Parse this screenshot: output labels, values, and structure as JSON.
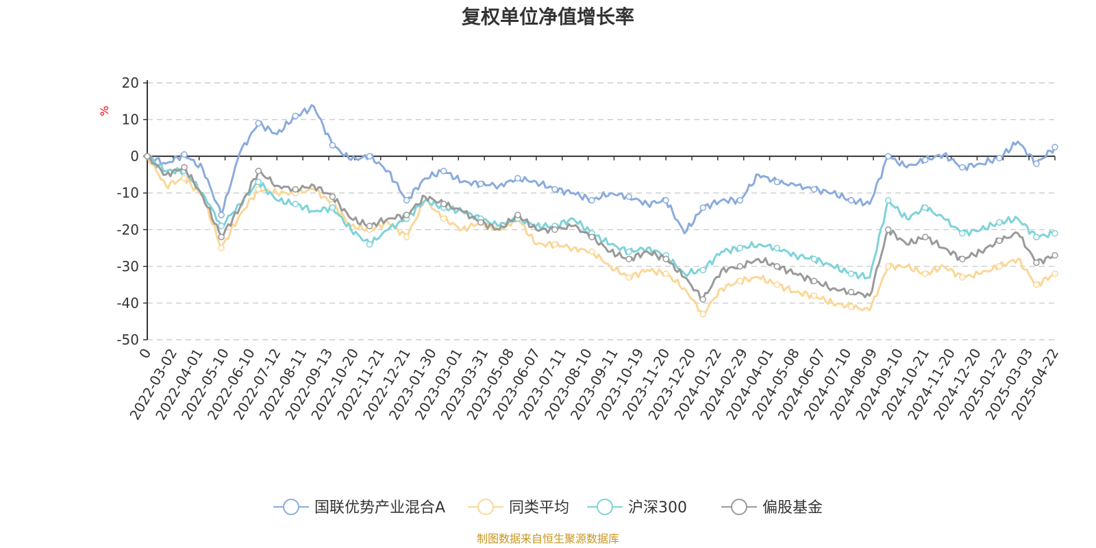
{
  "chart_data": {
    "type": "line",
    "title": "复权单位净值增长率",
    "ylabel": "%",
    "ylim": [
      -50,
      20
    ],
    "yticks": [
      20,
      10,
      0,
      -10,
      -20,
      -30,
      -40,
      -50
    ],
    "grid": true,
    "legend_position": "bottom",
    "source": "制图数据来自恒生聚源数据库",
    "x_tick_labels": [
      "0",
      "2022-03-02",
      "2022-04-01",
      "2022-05-10",
      "2022-06-10",
      "2022-07-12",
      "2022-08-11",
      "2022-09-13",
      "2022-10-20",
      "2022-11-21",
      "2022-12-21",
      "2023-01-30",
      "2023-03-01",
      "2023-03-31",
      "2023-05-08",
      "2023-06-07",
      "2023-07-11",
      "2023-08-10",
      "2023-09-11",
      "2023-10-19",
      "2023-11-20",
      "2023-12-20",
      "2024-01-22",
      "2024-02-29",
      "2024-04-01",
      "2024-05-08",
      "2024-06-07",
      "2024-07-10",
      "2024-08-09",
      "2024-09-10",
      "2024-10-21",
      "2024-11-20",
      "2024-12-20",
      "2025-01-22",
      "2025-03-03",
      "2025-04-22"
    ],
    "series": [
      {
        "name": "国联优势产业混合A",
        "color": "#8aabdc",
        "values": [
          0,
          -2,
          0.5,
          -3.5,
          -16,
          1,
          9,
          6,
          11,
          13.5,
          3,
          -1,
          0,
          -4,
          -12,
          -6,
          -4,
          -7,
          -7.5,
          -8,
          -6,
          -7,
          -9,
          -10,
          -12,
          -10,
          -11,
          -13,
          -12,
          -21,
          -14,
          -12,
          -12,
          -5,
          -7,
          -8,
          -9,
          -10,
          -12,
          -13,
          0,
          -3,
          -1,
          0.5,
          -3,
          -2,
          -0.5,
          4,
          -2,
          2.5
        ]
      },
      {
        "name": "同类平均",
        "color": "#fad797",
        "values": [
          0,
          -8,
          -6,
          -11,
          -25,
          -16,
          -9,
          -10,
          -10,
          -9,
          -13,
          -19,
          -20,
          -18,
          -22,
          -12,
          -17,
          -20,
          -18,
          -20,
          -17,
          -24,
          -24,
          -25,
          -26,
          -30,
          -33,
          -31,
          -32,
          -36,
          -43,
          -36,
          -34,
          -33,
          -35,
          -37,
          -38,
          -40,
          -41,
          -42,
          -30,
          -30,
          -32,
          -30,
          -33,
          -32,
          -30,
          -28,
          -35,
          -32
        ]
      },
      {
        "name": "沪深300",
        "color": "#7dd3d8",
        "values": [
          0,
          -4,
          -4,
          -10,
          -19,
          -13,
          -7,
          -12,
          -13,
          -15,
          -14,
          -20,
          -24,
          -20,
          -17,
          -12,
          -14,
          -15,
          -17,
          -19,
          -17,
          -19,
          -19,
          -17,
          -21,
          -24,
          -26,
          -25,
          -27,
          -32,
          -31,
          -26,
          -25,
          -24,
          -25,
          -27,
          -28,
          -30,
          -32,
          -33,
          -12,
          -17,
          -14,
          -17,
          -21,
          -20,
          -18,
          -17,
          -22,
          -21
        ]
      },
      {
        "name": "偏股基金",
        "color": "#999999",
        "values": [
          0,
          -5,
          -3,
          -11,
          -22,
          -14,
          -4,
          -8,
          -9,
          -8,
          -11,
          -17,
          -19,
          -17,
          -16,
          -11,
          -13,
          -15,
          -18,
          -20,
          -16,
          -20,
          -20,
          -19,
          -22,
          -26,
          -28,
          -26,
          -28,
          -33,
          -39,
          -31,
          -30,
          -28,
          -30,
          -32,
          -34,
          -36,
          -37,
          -38,
          -20,
          -24,
          -22,
          -25,
          -28,
          -26,
          -23,
          -21,
          -29,
          -27
        ]
      }
    ]
  }
}
